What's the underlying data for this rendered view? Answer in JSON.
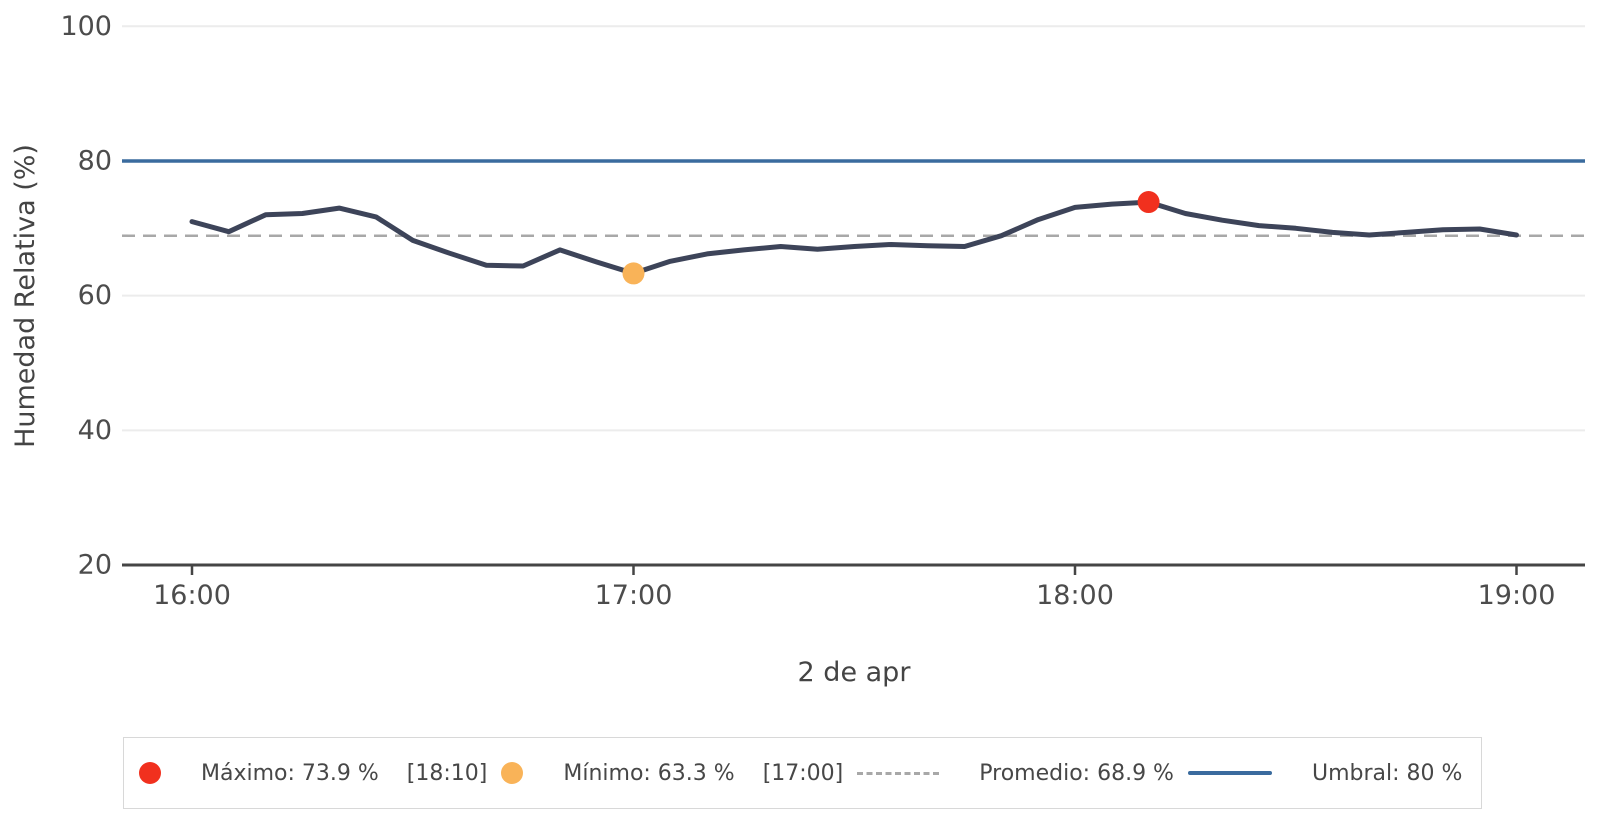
{
  "chart_data": {
    "type": "line",
    "title": "",
    "xlabel": "2 de apr",
    "ylabel": "Humedad Relativa (%)",
    "ylim": [
      20,
      100
    ],
    "yticks": [
      20,
      40,
      60,
      80,
      100
    ],
    "xticks": [
      {
        "label": "16:00",
        "minute": 0
      },
      {
        "label": "17:00",
        "minute": 60
      },
      {
        "label": "18:00",
        "minute": 120
      },
      {
        "label": "19:00",
        "minute": 180
      }
    ],
    "grid": true,
    "legend_position": "bottom",
    "interval_minutes": 5,
    "series": [
      {
        "name": "Humedad Relativa",
        "times": [
          "16:00",
          "16:05",
          "16:10",
          "16:15",
          "16:20",
          "16:25",
          "16:30",
          "16:35",
          "16:40",
          "16:45",
          "16:50",
          "16:55",
          "17:00",
          "17:05",
          "17:10",
          "17:15",
          "17:20",
          "17:25",
          "17:30",
          "17:35",
          "17:40",
          "17:45",
          "17:50",
          "17:55",
          "18:00",
          "18:05",
          "18:10",
          "18:15",
          "18:20",
          "18:25",
          "18:30",
          "18:35",
          "18:40",
          "18:45",
          "18:50",
          "18:55",
          "19:00"
        ],
        "values": [
          71.0,
          69.5,
          72.0,
          72.2,
          73.0,
          71.7,
          68.2,
          66.3,
          64.5,
          64.4,
          66.8,
          65.0,
          63.3,
          65.1,
          66.2,
          66.8,
          67.3,
          66.9,
          67.3,
          67.6,
          67.4,
          67.3,
          68.9,
          71.3,
          73.1,
          73.6,
          73.9,
          72.2,
          71.2,
          70.4,
          70.0,
          69.4,
          69.0,
          69.4,
          69.8,
          69.9,
          69.0
        ]
      }
    ],
    "max_point": {
      "label": "Máximo",
      "value": 73.9,
      "unit": "%",
      "time": "18:10",
      "minute": 130
    },
    "min_point": {
      "label": "Mínimo",
      "value": 63.3,
      "unit": "%",
      "time": "17:00",
      "minute": 60
    },
    "average": {
      "label": "Promedio",
      "value": 68.9,
      "unit": "%"
    },
    "threshold": {
      "label": "Umbral",
      "value": 80,
      "unit": "%"
    }
  },
  "legend": {
    "items": [
      {
        "id": "maximo",
        "marker": "dot",
        "color": "#f1301e",
        "label": "Máximo: 73.9 %",
        "bracket": "[18:10]"
      },
      {
        "id": "minimo",
        "marker": "dot",
        "color": "#f9b358",
        "label": "Mínimo: 63.3 %",
        "bracket": "[17:00]"
      },
      {
        "id": "promedio",
        "marker": "dashed-line",
        "color": "#a8a8a8",
        "label": "Promedio: 68.9 %",
        "bracket": ""
      },
      {
        "id": "umbral",
        "marker": "line",
        "color": "#3a6b9e",
        "label": "Umbral: 80 %",
        "bracket": ""
      }
    ]
  },
  "colors": {
    "series_line": "#3d4459",
    "max_point": "#f1301e",
    "min_point": "#f9b358",
    "average_line": "#a8a8a8",
    "threshold_line": "#3a6b9e",
    "grid_line": "#ececec",
    "axis_line": "#454545",
    "tick_text": "#4c4c4c",
    "axis_title_text": "#444444",
    "legend_border": "#d8d8d8",
    "legend_text": "#474747"
  }
}
